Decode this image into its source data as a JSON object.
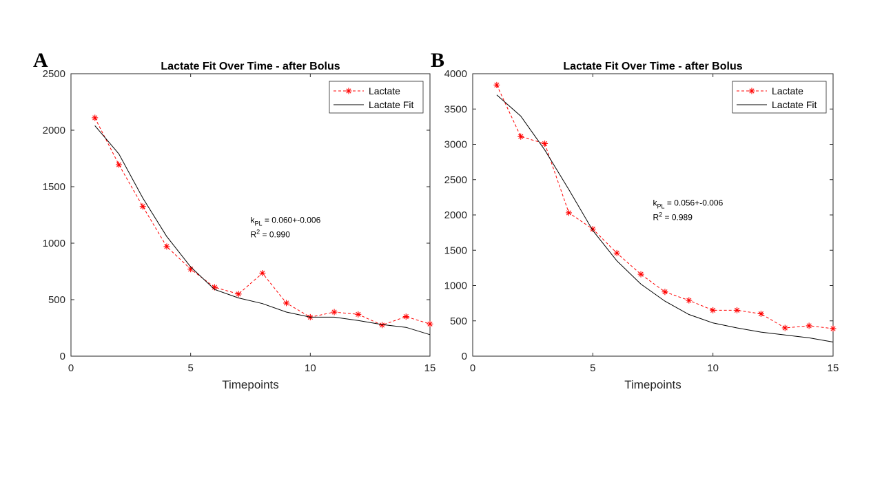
{
  "chart_data": [
    {
      "panel": "A",
      "type": "line",
      "title": "Lactate Fit Over Time - after Bolus",
      "xlabel": "Timepoints",
      "ylabel": "",
      "xlim": [
        0,
        15
      ],
      "ylim": [
        0,
        2500
      ],
      "xticks": [
        0,
        5,
        10,
        15
      ],
      "yticks": [
        0,
        500,
        1000,
        1500,
        2000,
        2500
      ],
      "grid": false,
      "legend_position": "top-right",
      "series": [
        {
          "name": "Lactate",
          "style": "dashed-star",
          "color": "#ff0000",
          "x": [
            1,
            2,
            3,
            4,
            5,
            6,
            7,
            8,
            9,
            10,
            11,
            12,
            13,
            14,
            15
          ],
          "y": [
            2110,
            1695,
            1325,
            970,
            770,
            610,
            550,
            735,
            470,
            345,
            390,
            370,
            275,
            350,
            285
          ]
        },
        {
          "name": "Lactate Fit",
          "style": "solid",
          "color": "#000000",
          "x": [
            1,
            2,
            3,
            4,
            5,
            6,
            7,
            8,
            9,
            10,
            11,
            12,
            13,
            14,
            15
          ],
          "y": [
            2040,
            1790,
            1400,
            1060,
            790,
            590,
            515,
            465,
            390,
            345,
            345,
            315,
            280,
            255,
            190
          ]
        }
      ],
      "annotation": {
        "k_prefix": "k",
        "k_subscript": "PL",
        "k_value": " = 0.060+-0.006",
        "r_prefix": "R",
        "r_superscript": "2",
        "r_value": " = 0.990",
        "x": 7.5,
        "y": 1180
      }
    },
    {
      "panel": "B",
      "type": "line",
      "title": "Lactate Fit Over Time - after Bolus",
      "xlabel": "Timepoints",
      "ylabel": "",
      "xlim": [
        0,
        15
      ],
      "ylim": [
        0,
        4000
      ],
      "xticks": [
        0,
        5,
        10,
        15
      ],
      "yticks": [
        0,
        500,
        1000,
        1500,
        2000,
        2500,
        3000,
        3500,
        4000
      ],
      "grid": false,
      "legend_position": "top-right",
      "series": [
        {
          "name": "Lactate",
          "style": "dashed-star",
          "color": "#ff0000",
          "x": [
            1,
            2,
            3,
            4,
            5,
            6,
            7,
            8,
            9,
            10,
            11,
            12,
            13,
            14,
            15
          ],
          "y": [
            3840,
            3110,
            3010,
            2030,
            1800,
            1460,
            1160,
            910,
            790,
            650,
            650,
            600,
            400,
            430,
            390
          ]
        },
        {
          "name": "Lactate Fit",
          "style": "solid",
          "color": "#000000",
          "x": [
            1,
            2,
            3,
            4,
            5,
            6,
            7,
            8,
            9,
            10,
            11,
            12,
            13,
            14,
            15
          ],
          "y": [
            3700,
            3400,
            2920,
            2360,
            1780,
            1350,
            1020,
            780,
            590,
            470,
            400,
            340,
            300,
            260,
            200
          ]
        }
      ],
      "annotation": {
        "k_prefix": "k",
        "k_subscript": "PL",
        "k_value": " = 0.056+-0.006",
        "r_prefix": "R",
        "r_superscript": "2",
        "r_value": " = 0.989",
        "x": 7.5,
        "y": 2130
      }
    }
  ]
}
